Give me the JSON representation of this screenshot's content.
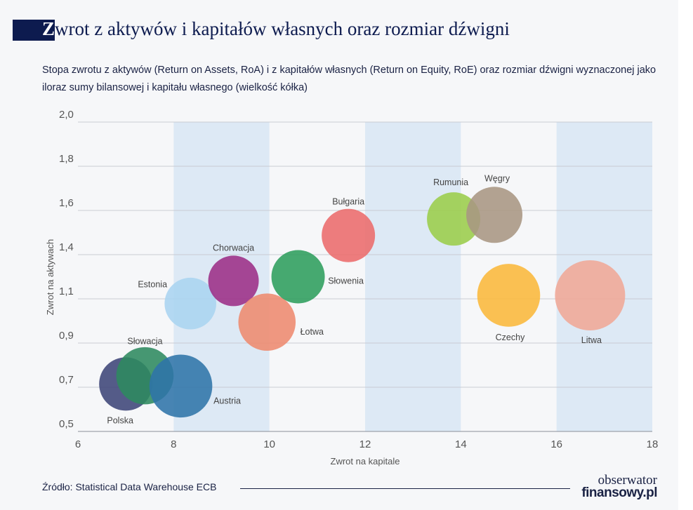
{
  "title_first": "Z",
  "title_rest": "wrot z aktywów i kapitałów własnych oraz rozmiar dźwigni",
  "subtitle": "Stopa zwrotu z aktywów (Return on Assets, RoA) i z kapitałów własnych (Return on Equity, RoE) oraz rozmiar dźwigni wyznaczonej jako iloraz sumy bilansowej i kapitału własnego (wielkość kółka)",
  "source": "Źródło: Statistical Data Warehouse ECB",
  "logo": {
    "line1": "obserwator",
    "line2": "finansowy.pl"
  },
  "chart_data": {
    "type": "scatter",
    "subtype": "bubble",
    "xlabel": "Zwrot na kapitale",
    "ylabel": "Zwrot na aktywach",
    "xlim": [
      6,
      18
    ],
    "ylim": [
      0.5,
      2.0
    ],
    "xticks": [
      "6",
      "8",
      "10",
      "12",
      "14",
      "16",
      "18"
    ],
    "yticks": [
      "0,5",
      "0,7",
      "0,9",
      "1,1",
      "1,4",
      "1,6",
      "1,8",
      "2,0"
    ],
    "grid": "horizontal",
    "shaded_bands": [
      [
        8,
        10
      ],
      [
        12,
        14
      ],
      [
        16,
        18
      ]
    ],
    "band_color": "#dde9f5",
    "points": [
      {
        "name": "Polska",
        "x": 7.0,
        "y": 0.73,
        "size": 9.5,
        "color": "#3d4677"
      },
      {
        "name": "Słowacja",
        "x": 7.4,
        "y": 0.77,
        "size": 10.2,
        "color": "#2e8a5e"
      },
      {
        "name": "Austria",
        "x": 8.15,
        "y": 0.72,
        "size": 11.2,
        "color": "#2f74a8"
      },
      {
        "name": "Estonia",
        "x": 8.35,
        "y": 1.12,
        "size": 9.2,
        "color": "#aad4f0"
      },
      {
        "name": "Chorwacja",
        "x": 9.25,
        "y": 1.23,
        "size": 9.0,
        "color": "#9c2d86"
      },
      {
        "name": "Łotwa",
        "x": 9.95,
        "y": 1.03,
        "size": 10.2,
        "color": "#ee8a6e"
      },
      {
        "name": "Słowenia",
        "x": 10.6,
        "y": 1.25,
        "size": 9.5,
        "color": "#2e9e5c"
      },
      {
        "name": "Bułgaria",
        "x": 11.65,
        "y": 1.45,
        "size": 9.5,
        "color": "#ec6b6b"
      },
      {
        "name": "Rumunia",
        "x": 13.85,
        "y": 1.53,
        "size": 9.5,
        "color": "#9bcd4a"
      },
      {
        "name": "Węgry",
        "x": 14.7,
        "y": 1.55,
        "size": 10.0,
        "color": "#a89682"
      },
      {
        "name": "Czechy",
        "x": 15.0,
        "y": 1.16,
        "size": 11.2,
        "color": "#fbb83a"
      },
      {
        "name": "Litwa",
        "x": 16.7,
        "y": 1.16,
        "size": 12.5,
        "color": "#f0a796"
      }
    ]
  }
}
